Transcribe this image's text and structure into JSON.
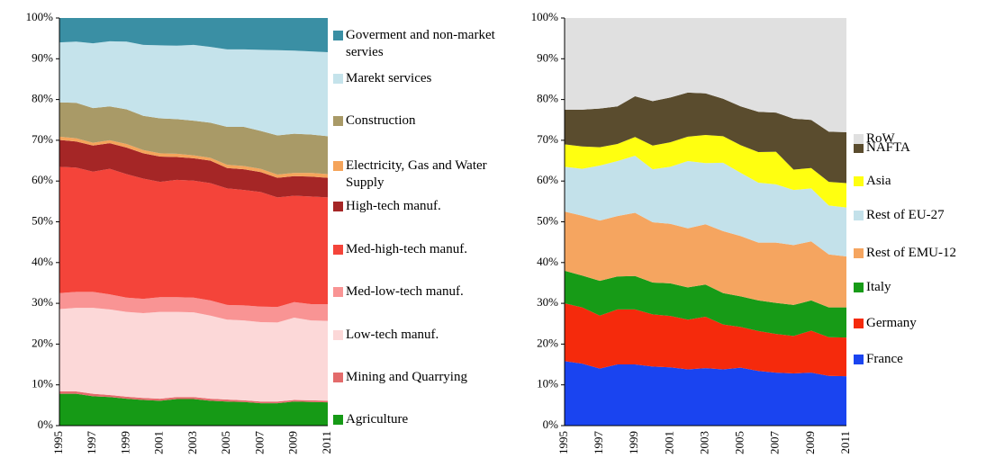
{
  "chart_data": [
    {
      "type": "area",
      "categories": [
        "1995",
        null,
        "1997",
        null,
        "1999",
        null,
        "2001",
        null,
        "2003",
        null,
        "2005",
        null,
        "2007",
        null,
        "2009",
        null,
        "2011"
      ],
      "ylim": [
        0,
        100
      ],
      "yticks": [
        {
          "value": 0,
          "label": "0%"
        },
        {
          "value": 10,
          "label": "10%"
        },
        {
          "value": 20,
          "label": "20%"
        },
        {
          "value": 30,
          "label": "30%"
        },
        {
          "value": 40,
          "label": "40%"
        },
        {
          "value": 50,
          "label": "50%"
        },
        {
          "value": 60,
          "label": "60%"
        },
        {
          "value": 70,
          "label": "70%"
        },
        {
          "value": 80,
          "label": "80%"
        },
        {
          "value": 90,
          "label": "90%"
        },
        {
          "value": 100,
          "label": "100%"
        }
      ],
      "series": [
        {
          "name": "Agriculture",
          "color": "#169a16",
          "values": [
            7.8,
            7.8,
            7.2,
            7.0,
            6.6,
            6.3,
            6.1,
            6.5,
            6.5,
            6.1,
            5.9,
            5.8,
            5.5,
            5.5,
            5.9,
            5.8,
            5.7
          ]
        },
        {
          "name": "Mining and Quarrying",
          "color": "#e36b6b",
          "values": [
            0.6,
            0.6,
            0.6,
            0.5,
            0.5,
            0.5,
            0.5,
            0.5,
            0.5,
            0.5,
            0.5,
            0.4,
            0.4,
            0.4,
            0.4,
            0.4,
            0.4
          ]
        },
        {
          "name": "Low-tech manuf.",
          "color": "#fcd8d8",
          "values": [
            20.2,
            20.5,
            21.1,
            21.0,
            20.8,
            20.8,
            21.3,
            20.9,
            20.8,
            20.4,
            19.6,
            19.6,
            19.5,
            19.4,
            20.2,
            19.6,
            19.6
          ]
        },
        {
          "name": "Med-low-tech manuf.",
          "color": "#f99494",
          "values": [
            3.9,
            3.9,
            3.9,
            3.7,
            3.5,
            3.5,
            3.6,
            3.6,
            3.6,
            3.7,
            3.6,
            3.7,
            3.8,
            3.8,
            3.8,
            4.0,
            4.1
          ]
        },
        {
          "name": "Med-high-tech manuf.",
          "color": "#f4443a",
          "values": [
            31.0,
            30.5,
            29.5,
            30.8,
            30.3,
            29.5,
            28.3,
            28.8,
            28.7,
            28.8,
            28.6,
            28.3,
            28.1,
            26.9,
            26.1,
            26.4,
            26.2
          ]
        },
        {
          "name": "High-tech manuf.",
          "color": "#a52626",
          "values": [
            6.6,
            6.4,
            6.4,
            6.3,
            6.5,
            6.2,
            6.2,
            5.6,
            5.5,
            5.5,
            5.0,
            5.1,
            4.9,
            4.8,
            4.8,
            4.9,
            4.8
          ]
        },
        {
          "name": "Electricity, Gas and Water Supply",
          "color": "#f5a45b",
          "values": [
            0.8,
            0.8,
            0.7,
            0.7,
            0.9,
            0.8,
            0.8,
            0.8,
            0.7,
            0.7,
            0.8,
            0.8,
            0.8,
            0.8,
            0.8,
            0.9,
            0.9
          ]
        },
        {
          "name": "Construction",
          "color": "#a99a67",
          "values": [
            8.4,
            8.7,
            8.5,
            8.3,
            8.5,
            8.4,
            8.6,
            8.5,
            8.5,
            8.6,
            9.3,
            9.6,
            9.3,
            9.6,
            9.6,
            9.4,
            9.3
          ]
        },
        {
          "name": "Marekt services",
          "color": "#c5e3eb",
          "values": [
            14.7,
            15.0,
            15.9,
            16.0,
            16.6,
            17.4,
            17.9,
            18.0,
            18.6,
            18.6,
            19.0,
            19.0,
            19.9,
            20.9,
            20.4,
            20.4,
            20.6
          ]
        },
        {
          "name": "Goverment and non-market servies",
          "color": "#3a8fa4",
          "values": [
            6.0,
            5.8,
            6.2,
            5.7,
            5.8,
            6.6,
            6.7,
            6.8,
            6.6,
            7.1,
            7.7,
            7.7,
            7.8,
            7.9,
            8.0,
            8.2,
            8.4
          ]
        }
      ]
    },
    {
      "type": "area",
      "categories": [
        "1995",
        null,
        "1997",
        null,
        "1999",
        null,
        "2001",
        null,
        "2003",
        null,
        "2005",
        null,
        "2007",
        null,
        "2009",
        null,
        "2011"
      ],
      "ylim": [
        0,
        100
      ],
      "yticks": [
        {
          "value": 0,
          "label": "0%"
        },
        {
          "value": 10,
          "label": "10%"
        },
        {
          "value": 20,
          "label": "20%"
        },
        {
          "value": 30,
          "label": "30%"
        },
        {
          "value": 40,
          "label": "40%"
        },
        {
          "value": 50,
          "label": "50%"
        },
        {
          "value": 60,
          "label": "60%"
        },
        {
          "value": 70,
          "label": "70%"
        },
        {
          "value": 80,
          "label": "80%"
        },
        {
          "value": 90,
          "label": "90%"
        },
        {
          "value": 100,
          "label": "100%"
        }
      ],
      "series": [
        {
          "name": "France",
          "color": "#1a44f0",
          "values": [
            15.8,
            15.2,
            14.0,
            15.0,
            15.0,
            14.5,
            14.3,
            13.8,
            14.1,
            13.8,
            14.2,
            13.4,
            13.0,
            12.8,
            13.0,
            12.2,
            12.1
          ]
        },
        {
          "name": "Germany",
          "color": "#f52a0c",
          "values": [
            14.2,
            13.8,
            13.0,
            13.5,
            13.5,
            12.8,
            12.6,
            12.2,
            12.6,
            11.0,
            10.0,
            9.8,
            9.5,
            9.2,
            10.3,
            9.5,
            9.5
          ]
        },
        {
          "name": "Italy",
          "color": "#179b17",
          "values": [
            8.0,
            7.8,
            8.5,
            8.1,
            8.2,
            7.8,
            8.0,
            7.9,
            7.9,
            7.7,
            7.5,
            7.5,
            7.6,
            7.6,
            7.4,
            7.3,
            7.4
          ]
        },
        {
          "name": "Rest of EMU-12",
          "color": "#f5a560",
          "values": [
            14.5,
            14.7,
            14.8,
            14.8,
            15.5,
            14.8,
            14.6,
            14.5,
            14.8,
            15.2,
            14.8,
            14.2,
            14.8,
            14.7,
            14.5,
            13.0,
            12.5
          ]
        },
        {
          "name": "Rest of  EU-27",
          "color": "#c3e1ea",
          "values": [
            11.0,
            11.5,
            13.5,
            13.5,
            14.0,
            13.0,
            14.0,
            16.5,
            15.0,
            16.8,
            15.5,
            14.7,
            14.3,
            13.5,
            13.0,
            12.0,
            12.0
          ]
        },
        {
          "name": "Asia",
          "color": "#ffff10",
          "values": [
            5.5,
            5.5,
            4.5,
            4.2,
            4.6,
            5.8,
            6.0,
            6.0,
            6.9,
            6.5,
            6.8,
            7.5,
            8.0,
            5.0,
            5.0,
            5.8,
            6.0
          ]
        },
        {
          "name": "NAFTA",
          "color": "#5a4c2e",
          "values": [
            8.5,
            9.0,
            9.5,
            9.2,
            10.0,
            10.9,
            11.0,
            10.8,
            10.2,
            9.2,
            9.5,
            9.9,
            9.6,
            12.5,
            11.8,
            12.3,
            12.5
          ]
        },
        {
          "name": "RoW",
          "color": "#e0e0e0",
          "values": [
            22.5,
            22.5,
            22.2,
            21.7,
            19.2,
            20.4,
            19.5,
            18.3,
            18.5,
            19.8,
            21.7,
            23.0,
            23.2,
            24.7,
            25.0,
            27.9,
            28.0
          ]
        }
      ]
    }
  ]
}
